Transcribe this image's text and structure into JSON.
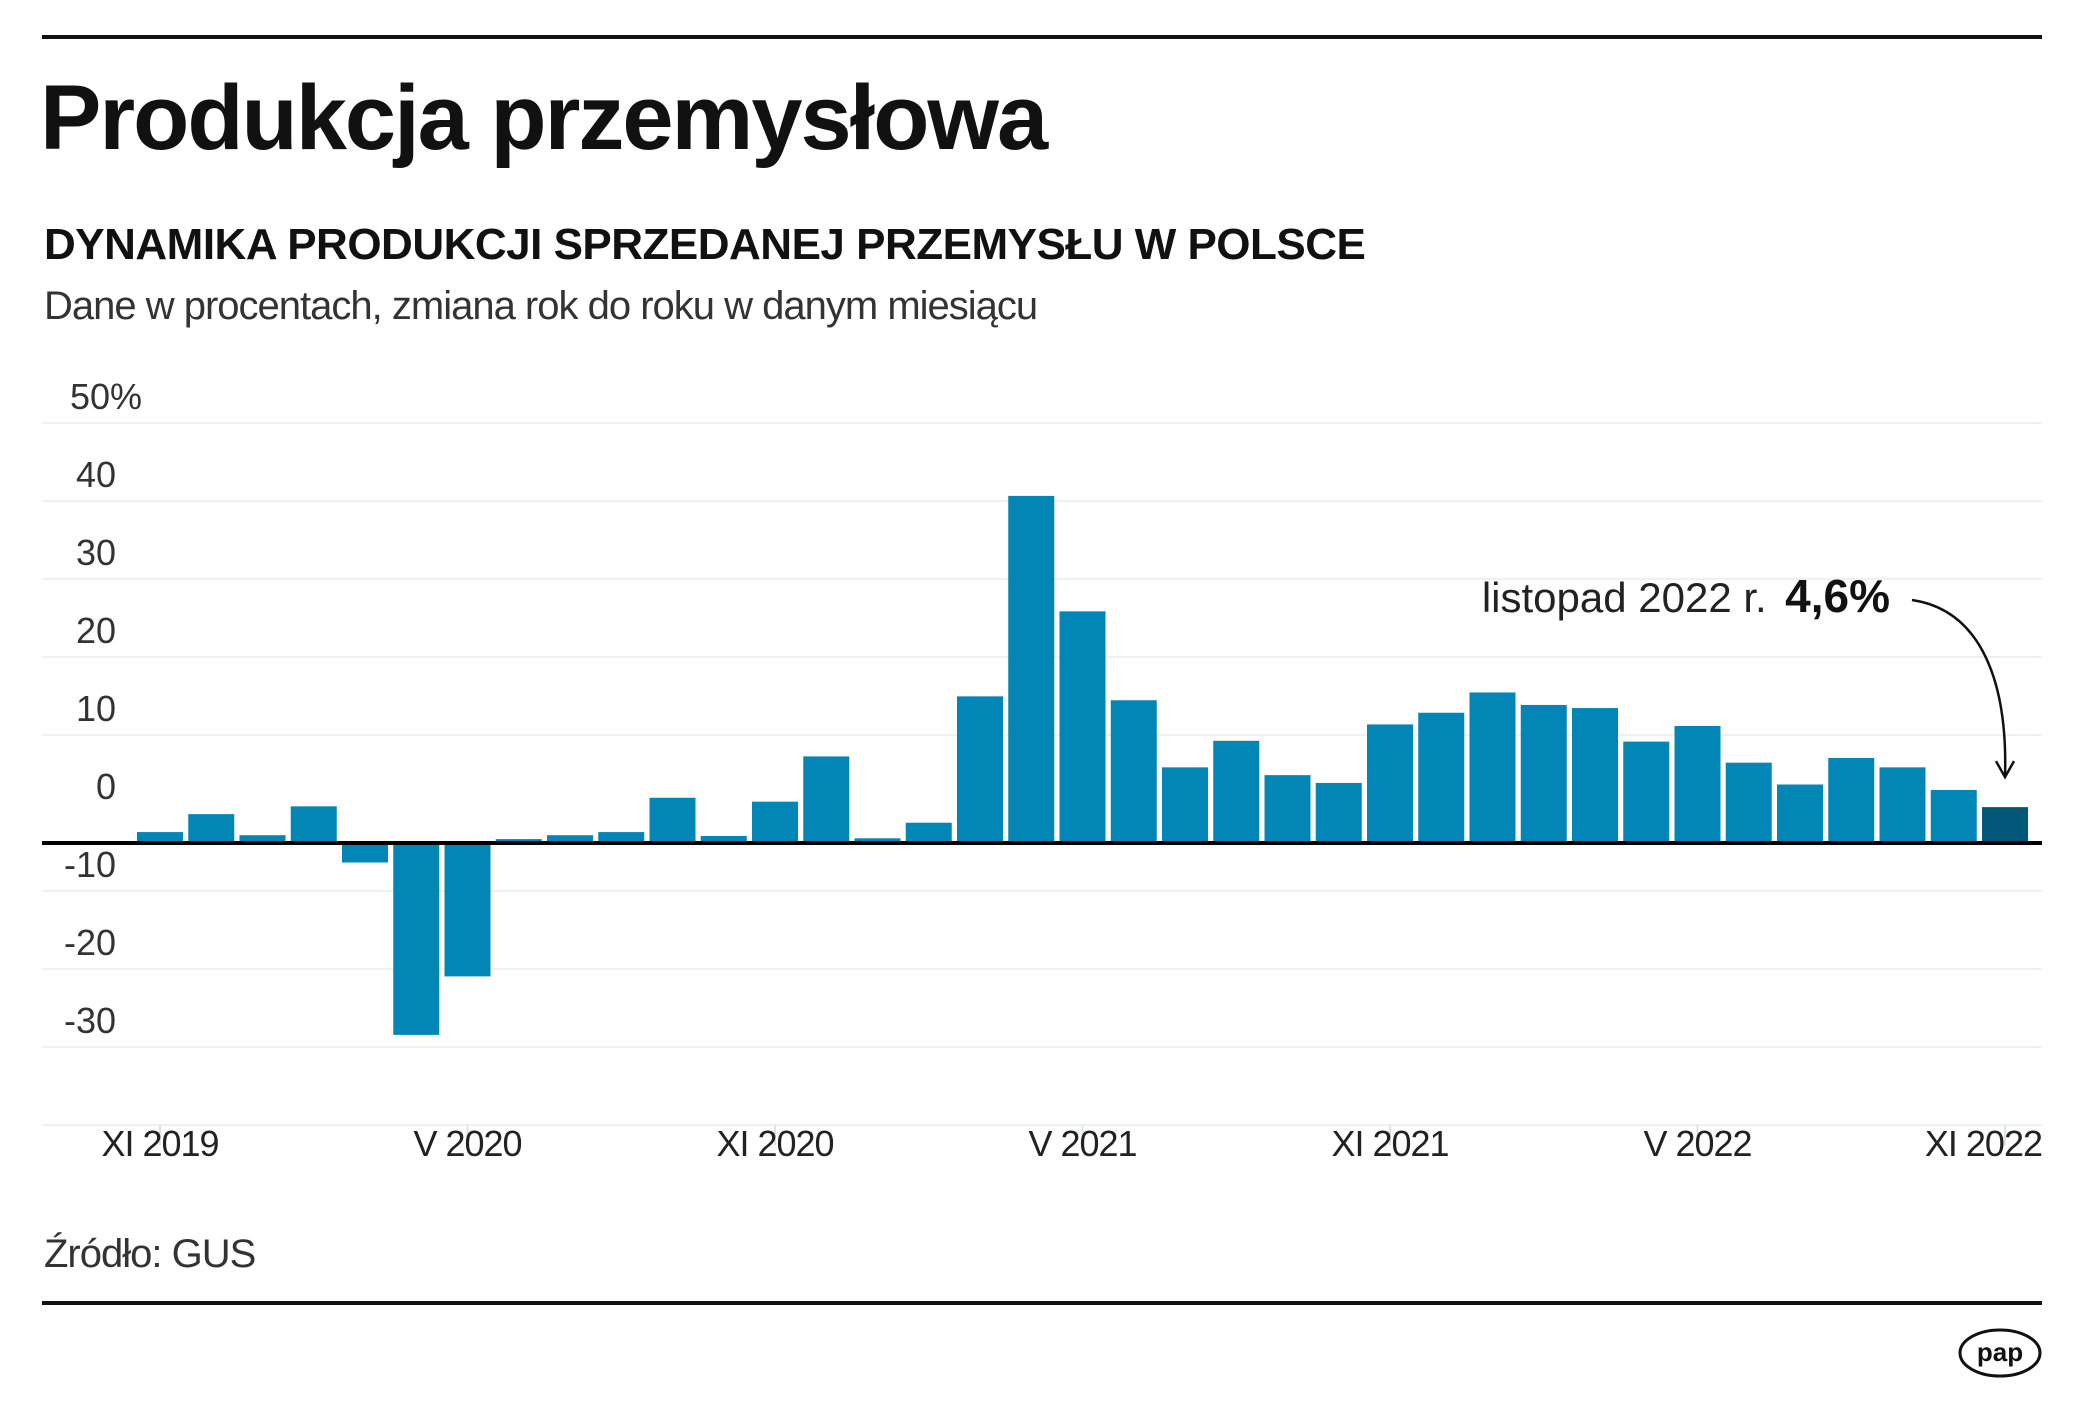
{
  "header": {
    "title": "Produkcja przemysłowa",
    "subtitle": "DYNAMIKA PRODUKCJI SPRZEDANEJ PRZEMYSŁU W POLSCE",
    "description": "Dane w procentach, zmiana rok do roku w danym miesiącu"
  },
  "footer": {
    "source": "Źródło: GUS",
    "logo_text": "pap"
  },
  "colors": {
    "bar": "#0286b5",
    "highlight": "#03587a",
    "grid": "#eef1f1",
    "axis": "#000000"
  },
  "chart_data": {
    "type": "bar",
    "title": "DYNAMIKA PRODUKCJI SPRZEDANEJ PRZEMYSŁU W POLSCE",
    "xlabel": "",
    "ylabel": "",
    "ylim": [
      -30,
      50
    ],
    "yticks": [
      -30,
      -20,
      -10,
      0,
      10,
      20,
      30,
      40,
      50
    ],
    "ytick_labels": [
      "-30",
      "-20",
      "-10",
      "0",
      "10",
      "20",
      "30",
      "40",
      "50%"
    ],
    "grid": true,
    "categories": [
      "XI 2019",
      "XII 2019",
      "I 2020",
      "II 2020",
      "III 2020",
      "IV 2020",
      "V 2020",
      "VI 2020",
      "VII 2020",
      "VIII 2020",
      "IX 2020",
      "X 2020",
      "XI 2020",
      "XII 2020",
      "I 2021",
      "II 2021",
      "III 2021",
      "IV 2021",
      "V 2021",
      "VI 2021",
      "VII 2021",
      "VIII 2021",
      "IX 2021",
      "X 2021",
      "XI 2021",
      "XII 2021",
      "I 2022",
      "II 2022",
      "III 2022",
      "IV 2022",
      "V 2022",
      "VI 2022",
      "VII 2022",
      "VIII 2022",
      "IX 2022",
      "X 2022",
      "XI 2022"
    ],
    "values": [
      1.4,
      3.7,
      1.0,
      4.7,
      -2.5,
      -24.6,
      -17.1,
      0.5,
      1.0,
      1.4,
      5.8,
      0.9,
      5.3,
      11.1,
      0.6,
      2.6,
      18.8,
      44.5,
      29.7,
      18.3,
      9.7,
      13.1,
      8.7,
      7.7,
      15.2,
      16.7,
      19.3,
      17.7,
      17.3,
      13.0,
      15.0,
      10.3,
      7.5,
      10.9,
      9.7,
      6.8,
      4.6
    ],
    "highlight_index": 36,
    "xtick_labels": [
      {
        "index": 0,
        "label": "XI 2019"
      },
      {
        "index": 6,
        "label": "V 2020"
      },
      {
        "index": 12,
        "label": "XI 2020"
      },
      {
        "index": 18,
        "label": "V 2021"
      },
      {
        "index": 24,
        "label": "XI 2021"
      },
      {
        "index": 30,
        "label": "V 2022"
      },
      {
        "index": 36,
        "label": "XI 2022"
      }
    ],
    "annotation": {
      "label": "listopad 2022 r.",
      "value": "4,6%",
      "target_index": 36
    }
  }
}
